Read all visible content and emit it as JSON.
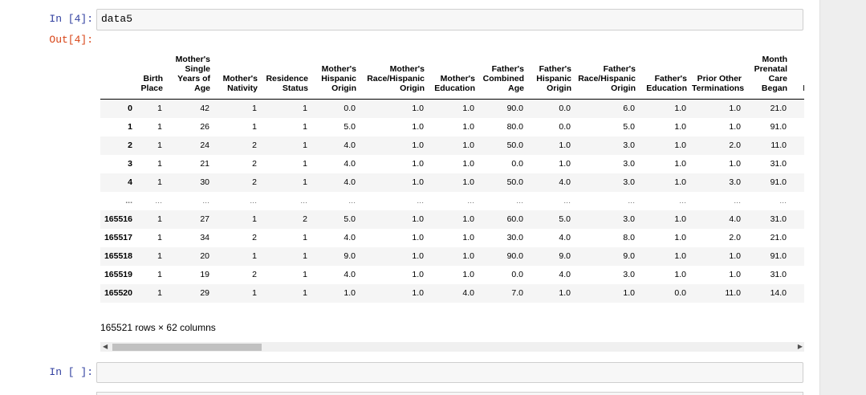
{
  "cell_in": {
    "prompt": "In [4]:",
    "code": "data5"
  },
  "cell_out": {
    "prompt": "Out[4]:"
  },
  "table": {
    "columns": [
      "",
      "Birth Place",
      "Mother's Single Years of Age",
      "Mother's Nativity",
      "Residence Status",
      "Mother's Hispanic Origin",
      "Mother's Race/Hispanic Origin",
      "Mother's Education",
      "Father's Combined Age",
      "Father's Hispanic Origin",
      "Father's Race/Hispanic Origin",
      "Father's Education",
      "Prior Other Terminations",
      "Month Prenatal Care Began",
      "N Pr"
    ],
    "rows": [
      [
        "0",
        "1",
        "42",
        "1",
        "1",
        "0.0",
        "1.0",
        "1.0",
        "90.0",
        "0.0",
        "6.0",
        "1.0",
        "1.0",
        "21.0",
        ""
      ],
      [
        "1",
        "1",
        "26",
        "1",
        "1",
        "5.0",
        "1.0",
        "1.0",
        "80.0",
        "0.0",
        "5.0",
        "1.0",
        "1.0",
        "91.0",
        ""
      ],
      [
        "2",
        "1",
        "24",
        "2",
        "1",
        "4.0",
        "1.0",
        "1.0",
        "50.0",
        "1.0",
        "3.0",
        "1.0",
        "2.0",
        "11.0",
        ""
      ],
      [
        "3",
        "1",
        "21",
        "2",
        "1",
        "4.0",
        "1.0",
        "1.0",
        "0.0",
        "1.0",
        "3.0",
        "1.0",
        "1.0",
        "31.0",
        ""
      ],
      [
        "4",
        "1",
        "30",
        "2",
        "1",
        "4.0",
        "1.0",
        "1.0",
        "50.0",
        "4.0",
        "3.0",
        "1.0",
        "3.0",
        "91.0",
        ""
      ],
      [
        "...",
        "...",
        "...",
        "...",
        "...",
        "...",
        "...",
        "...",
        "...",
        "...",
        "...",
        "...",
        "...",
        "...",
        ""
      ],
      [
        "165516",
        "1",
        "27",
        "1",
        "2",
        "5.0",
        "1.0",
        "1.0",
        "60.0",
        "5.0",
        "3.0",
        "1.0",
        "4.0",
        "31.0",
        ""
      ],
      [
        "165517",
        "1",
        "34",
        "2",
        "1",
        "4.0",
        "1.0",
        "1.0",
        "30.0",
        "4.0",
        "8.0",
        "1.0",
        "2.0",
        "21.0",
        ""
      ],
      [
        "165518",
        "1",
        "20",
        "1",
        "1",
        "9.0",
        "1.0",
        "1.0",
        "90.0",
        "9.0",
        "9.0",
        "1.0",
        "1.0",
        "91.0",
        ""
      ],
      [
        "165519",
        "1",
        "19",
        "2",
        "1",
        "4.0",
        "1.0",
        "1.0",
        "0.0",
        "4.0",
        "3.0",
        "1.0",
        "1.0",
        "31.0",
        ""
      ],
      [
        "165520",
        "1",
        "29",
        "1",
        "1",
        "1.0",
        "1.0",
        "4.0",
        "7.0",
        "1.0",
        "1.0",
        "0.0",
        "11.0",
        "14.0",
        ""
      ]
    ],
    "caption": "165521 rows × 62 columns"
  },
  "cell_empty": {
    "prompt": "In [ ]:"
  }
}
